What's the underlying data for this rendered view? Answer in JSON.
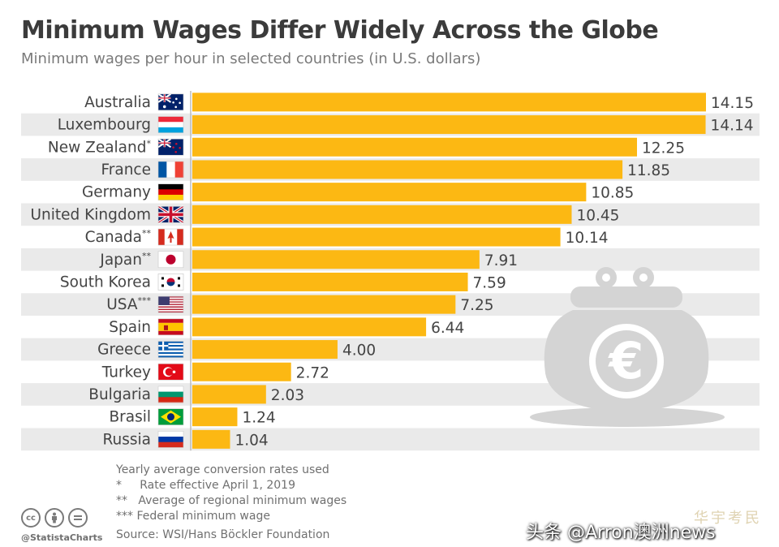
{
  "title": "Minimum Wages Differ Widely Across the Globe",
  "subtitle": "Minimum wages per hour in selected countries (in U.S. dollars)",
  "chart_data": {
    "type": "bar",
    "orientation": "horizontal",
    "categories": [
      "Australia",
      "Luxembourg",
      "New Zealand*",
      "France",
      "Germany",
      "United Kingdom",
      "Canada**",
      "Japan**",
      "South Korea",
      "USA***",
      "Spain",
      "Greece",
      "Turkey",
      "Bulgaria",
      "Brasil",
      "Russia"
    ],
    "values": [
      14.15,
      14.14,
      12.25,
      11.85,
      10.85,
      10.45,
      10.14,
      7.91,
      7.59,
      7.25,
      6.44,
      4.0,
      2.72,
      2.03,
      1.24,
      1.04
    ],
    "value_labels": [
      "14.15",
      "14.14",
      "12.25",
      "11.85",
      "10.85",
      "10.45",
      "10.14",
      "7.91",
      "7.59",
      "7.25",
      "6.44",
      "4.00",
      "2.72",
      "2.03",
      "1.24",
      "1.04"
    ],
    "xlim": [
      0,
      14.15
    ],
    "grid": false,
    "bar_color": "#fcb813",
    "band_color": "#eaeaea"
  },
  "flags": [
    "australia-flag-icon",
    "luxembourg-flag-icon",
    "new-zealand-flag-icon",
    "france-flag-icon",
    "germany-flag-icon",
    "united-kingdom-flag-icon",
    "canada-flag-icon",
    "japan-flag-icon",
    "south-korea-flag-icon",
    "usa-flag-icon",
    "spain-flag-icon",
    "greece-flag-icon",
    "turkey-flag-icon",
    "bulgaria-flag-icon",
    "brasil-flag-icon",
    "russia-flag-icon"
  ],
  "decoration": {
    "icon": "euro-coin-purse-icon",
    "color": "#d4d4d4"
  },
  "notes": [
    "Yearly average conversion rates used",
    "*     Rate effective April 1, 2019",
    "**   Average of regional minimum wages",
    "*** Federal minimum wage"
  ],
  "source": "Source: WSI/Hans Böckler Foundation",
  "license_icons": [
    "cc-icon",
    "attribution-icon",
    "no-derivatives-icon"
  ],
  "brand": "@StatistaCharts",
  "watermark": "头条 @Arron澳洲news",
  "watermark2": "华宇考民"
}
